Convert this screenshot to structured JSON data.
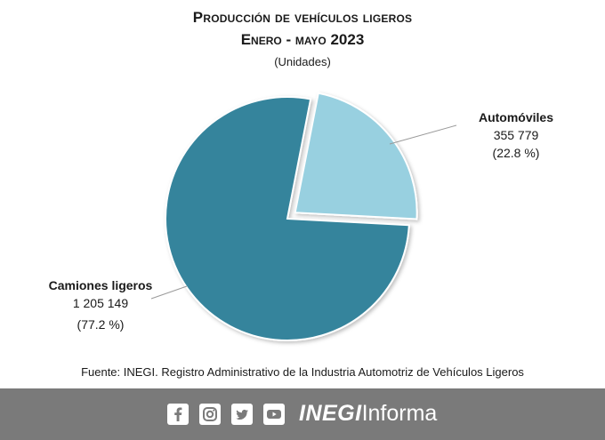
{
  "chart_data": {
    "type": "pie",
    "title": "Producción de vehículos ligeros",
    "subtitle": "Enero - mayo 2023",
    "unit_label": "(Unidades)",
    "series": [
      {
        "name": "Automóviles",
        "value": 355779,
        "value_label": "355 779",
        "percent_label": "(22.8 %)",
        "color": "#98d0e0",
        "exploded": true
      },
      {
        "name": "Camiones ligeros",
        "value": 1205149,
        "value_label": "1 205 149",
        "percent_label": "(77.2 %)",
        "color": "#35849c",
        "exploded": false
      }
    ]
  },
  "source": "Fuente: INEGI. Registro Administrativo de la Industria Automotriz de Vehículos Ligeros",
  "footer": {
    "icons": [
      "facebook-icon",
      "instagram-icon",
      "twitter-icon",
      "youtube-icon"
    ],
    "brand_bold": "INEGI",
    "brand_light": "Informa",
    "background": "#7a7a7a"
  }
}
